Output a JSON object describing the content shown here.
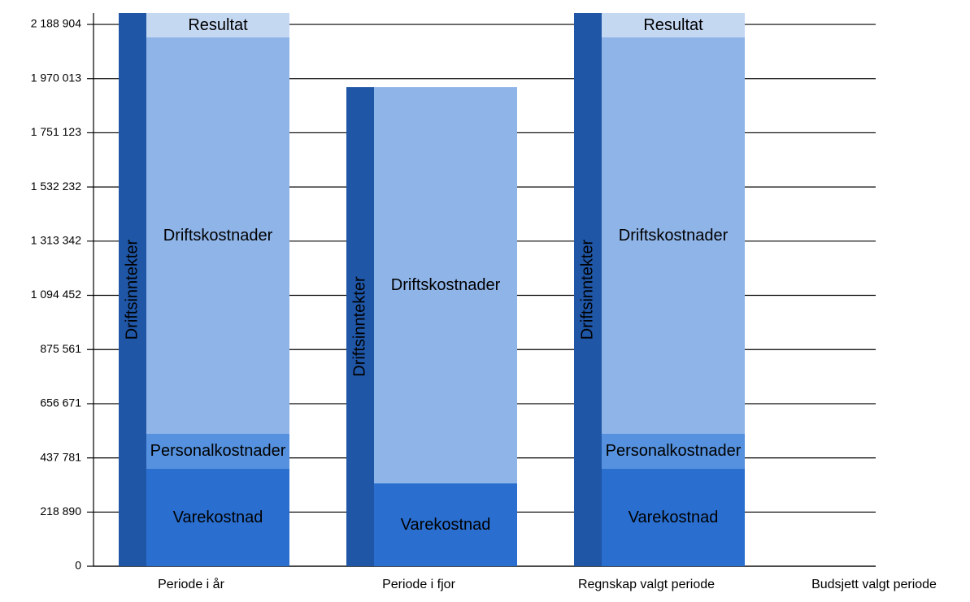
{
  "chart_data": {
    "type": "bar",
    "categories": [
      "Periode i år",
      "Periode i fjor",
      "Regnskap valgt periode",
      "Budsjett valgt periode"
    ],
    "series": [
      {
        "name": "Driftsinntekter",
        "color": "#1f56a6",
        "values": [
          2235000,
          1936000,
          2235000,
          0
        ]
      },
      {
        "name": "Varekostnad",
        "color": "#2a6fd0",
        "values": [
          394000,
          335000,
          394000,
          0
        ]
      },
      {
        "name": "Personalkostnader",
        "color": "#5591de",
        "values": [
          141000,
          0,
          141000,
          0
        ]
      },
      {
        "name": "Driftskostnader",
        "color": "#8fb4e8",
        "values": [
          1602000,
          1601000,
          1602000,
          0
        ]
      },
      {
        "name": "Resultat",
        "color": "#c5d8f2",
        "values": [
          98000,
          0,
          98000,
          0
        ]
      }
    ],
    "ylim": [
      0,
      2235000
    ],
    "yticks": [
      0,
      {
        "value": 218890,
        "label": "218 890"
      },
      {
        "value": 437781,
        "label": "437 781"
      },
      {
        "value": 656671,
        "label": "656 671"
      },
      {
        "value": 875561,
        "label": "875 561"
      },
      {
        "value": 1094452,
        "label": "1 094 452"
      },
      {
        "value": 1313342,
        "label": "1 313 342"
      },
      {
        "value": 1532232,
        "label": "1 532 232"
      },
      {
        "value": 1751123,
        "label": "1 751 123"
      },
      {
        "value": 1970013,
        "label": "1 970 013"
      },
      {
        "value": 2188904,
        "label": "2 188 904"
      }
    ],
    "grid": true
  }
}
